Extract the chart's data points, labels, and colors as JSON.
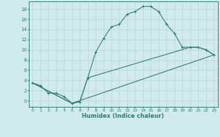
{
  "xlabel": "Humidex (Indice chaleur)",
  "bg_color": "#d0eaee",
  "line_color": "#2e7d6e",
  "grid_color": "#b8d4d8",
  "xlim": [
    -0.5,
    23.5
  ],
  "ylim": [
    -1.2,
    19.5
  ],
  "xticks": [
    0,
    1,
    2,
    3,
    4,
    5,
    6,
    7,
    8,
    9,
    10,
    11,
    12,
    13,
    14,
    15,
    16,
    17,
    18,
    19,
    20,
    21,
    22,
    23
  ],
  "yticks": [
    0,
    2,
    4,
    6,
    8,
    10,
    12,
    14,
    16,
    18
  ],
  "series1_x": [
    0,
    1,
    2,
    3,
    4,
    5,
    6,
    7,
    8,
    9,
    10,
    11,
    12,
    13,
    14,
    15,
    16,
    17,
    18,
    19,
    20,
    21,
    22,
    23
  ],
  "series1_y": [
    3.5,
    3.0,
    1.5,
    1.5,
    0.8,
    -0.5,
    -0.2,
    4.5,
    9.5,
    12.2,
    14.5,
    15.0,
    17.0,
    17.5,
    18.5,
    18.5,
    17.5,
    15.0,
    13.2,
    10.5,
    10.5,
    10.5,
    10.0,
    9.0
  ],
  "series2_x": [
    0,
    5,
    6,
    7,
    20,
    21,
    22,
    23
  ],
  "series2_y": [
    3.5,
    -0.5,
    -0.2,
    4.5,
    10.5,
    10.5,
    10.0,
    9.0
  ],
  "series3_x": [
    0,
    5,
    23
  ],
  "series3_y": [
    3.5,
    -0.5,
    9.0
  ]
}
